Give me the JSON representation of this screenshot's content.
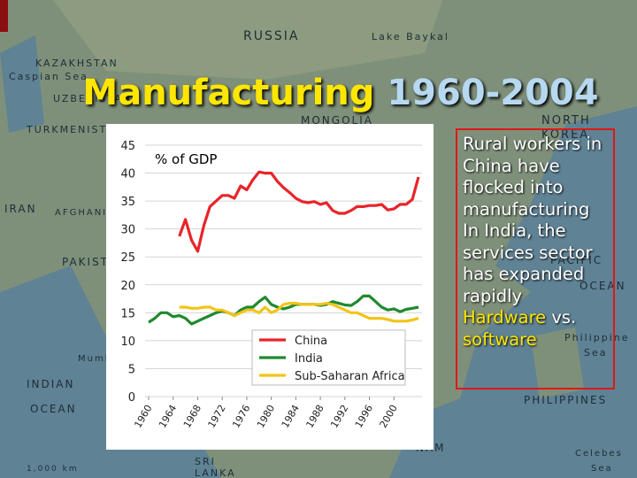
{
  "slide": {
    "title_main": "Manufacturing",
    "title_years": "1960-2004",
    "paragraphs": [
      "Rural workers in China have flocked into manufacturing",
      "In India, the services sector has expanded rapidly"
    ],
    "highlight_1": "Hardware",
    "connector": "vs.",
    "highlight_2": "software"
  },
  "map_labels": [
    "RUSSIA",
    "Lake Baykal",
    "MONGOLIA",
    "KAZAKHSTAN",
    "UZBEKISTAN",
    "TURKMENISTAN",
    "IRAN",
    "AFGHANISTAN",
    "PAKISTAN",
    "Mumbai",
    "INDIAN",
    "OCEAN",
    "SRI",
    "LANKA",
    "NORTH",
    "KOREA",
    "PACIFIC",
    "OCEAN",
    "Philippine",
    "Sea",
    "PHILIPPINES",
    "Celebes",
    "Sea",
    "NAM",
    "Caspian Sea",
    "1,000 km"
  ],
  "chart_data": {
    "type": "line",
    "y_label": "% of GDP",
    "x": [
      1960,
      1961,
      1962,
      1963,
      1964,
      1965,
      1966,
      1967,
      1968,
      1969,
      1970,
      1971,
      1972,
      1973,
      1974,
      1975,
      1976,
      1977,
      1978,
      1979,
      1980,
      1981,
      1982,
      1983,
      1984,
      1985,
      1986,
      1987,
      1988,
      1989,
      1990,
      1991,
      1992,
      1993,
      1994,
      1995,
      1996,
      1997,
      1998,
      1999,
      2000,
      2001,
      2002,
      2003,
      2004
    ],
    "xlim": [
      1960,
      2004
    ],
    "xticks": [
      1960,
      1964,
      1968,
      1972,
      1976,
      1980,
      1984,
      1988,
      1992,
      1996,
      2000
    ],
    "ylim": [
      0,
      45
    ],
    "yticks": [
      0,
      5,
      10,
      15,
      20,
      25,
      30,
      35,
      40,
      45
    ],
    "grid": true,
    "legend": "lower right",
    "series": [
      {
        "name": "China",
        "color": "#e8242a",
        "values": [
          null,
          null,
          null,
          null,
          null,
          28.7,
          31.7,
          28,
          26,
          30.6,
          34,
          35,
          36,
          36,
          35.5,
          37.7,
          37,
          38.8,
          40.2,
          40,
          40,
          38.5,
          37.4,
          36.5,
          35.5,
          34.9,
          34.7,
          34.9,
          34.4,
          34.7,
          33.3,
          32.8,
          32.8,
          33.3,
          34,
          34,
          34.2,
          34.2,
          34.4,
          33.4,
          33.6,
          34.4,
          34.4,
          35.3,
          39.3
        ]
      },
      {
        "name": "India",
        "color": "#1f8a2e",
        "values": [
          13.3,
          14,
          15,
          15,
          14.3,
          14.5,
          14,
          13,
          13.5,
          14,
          14.5,
          15,
          15.3,
          15,
          14.5,
          15.5,
          16,
          16,
          17,
          17.8,
          16.5,
          16,
          15.7,
          16,
          16.5,
          16.5,
          16.5,
          16.5,
          16.3,
          16.5,
          17,
          16.7,
          16.4,
          16.3,
          17,
          18,
          18,
          17,
          16,
          15.5,
          15.7,
          15.2,
          15.6,
          15.8,
          16
        ]
      },
      {
        "name": "Sub-Saharan Africa",
        "color": "#f2c418",
        "values": [
          null,
          null,
          null,
          null,
          null,
          16,
          16,
          15.8,
          15.8,
          16,
          16,
          15.5,
          15.5,
          15,
          14.5,
          15,
          15.5,
          15.5,
          15,
          16,
          15,
          15.5,
          16.5,
          16.7,
          16.7,
          16.5,
          16.5,
          16.5,
          16.5,
          16.7,
          16.5,
          16,
          15.5,
          15,
          15,
          14.5,
          14,
          14,
          14,
          13.8,
          13.5,
          13.5,
          13.5,
          13.7,
          14
        ]
      }
    ]
  }
}
